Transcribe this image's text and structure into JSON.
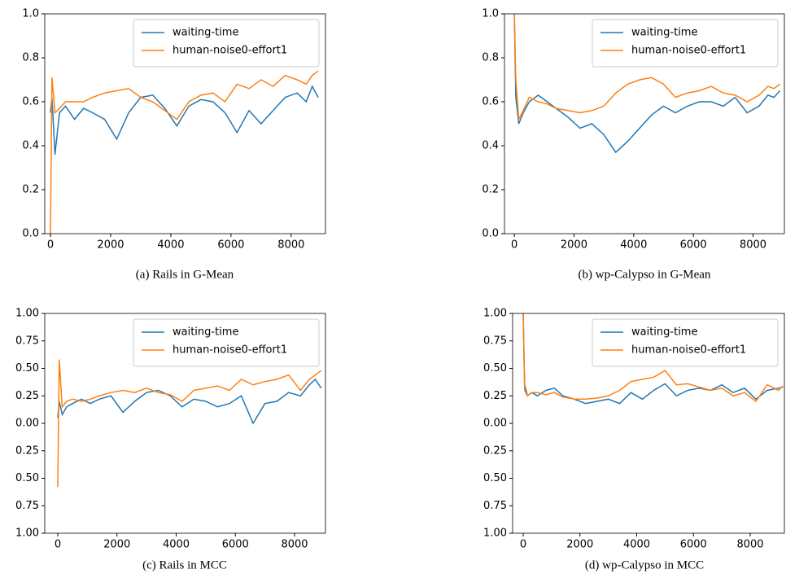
{
  "chart_data": [
    {
      "type": "line",
      "caption": "(a)  Rails in G-Mean",
      "x": [
        0,
        50,
        150,
        300,
        500,
        800,
        1100,
        1400,
        1800,
        2200,
        2600,
        3000,
        3400,
        3800,
        4200,
        4600,
        5000,
        5400,
        5800,
        6200,
        6600,
        7000,
        7400,
        7800,
        8200,
        8500,
        8700,
        8900
      ],
      "series": [
        {
          "name": "waiting-time",
          "color": "#1f77b4",
          "values": [
            0.55,
            0.62,
            0.36,
            0.55,
            0.58,
            0.52,
            0.57,
            0.55,
            0.52,
            0.43,
            0.55,
            0.62,
            0.63,
            0.57,
            0.49,
            0.58,
            0.61,
            0.6,
            0.55,
            0.46,
            0.56,
            0.5,
            0.56,
            0.62,
            0.64,
            0.6,
            0.67,
            0.62
          ]
        },
        {
          "name": "human-noise0-effort1",
          "color": "#ff7f0e",
          "values": [
            0.0,
            0.71,
            0.55,
            0.57,
            0.6,
            0.6,
            0.6,
            0.62,
            0.64,
            0.65,
            0.66,
            0.62,
            0.6,
            0.56,
            0.52,
            0.6,
            0.63,
            0.64,
            0.6,
            0.68,
            0.66,
            0.7,
            0.67,
            0.72,
            0.7,
            0.68,
            0.72,
            0.74
          ]
        }
      ],
      "xlim": [
        -190,
        9140
      ],
      "ylim": [
        0,
        1
      ],
      "xticks": [
        0,
        2000,
        4000,
        6000,
        8000
      ],
      "yticks": [
        {
          "value": 0,
          "label": "0.0"
        },
        0.2,
        0.4,
        0.6,
        0.8,
        {
          "value": 1,
          "label": "1.0"
        }
      ],
      "legend": "upper right"
    },
    {
      "type": "line",
      "caption": "(b)  wp-Calypso in G-Mean",
      "x": [
        0,
        50,
        150,
        300,
        500,
        800,
        1100,
        1400,
        1800,
        2200,
        2600,
        3000,
        3400,
        3800,
        4200,
        4600,
        5000,
        5400,
        5800,
        6200,
        6600,
        7000,
        7400,
        7800,
        8200,
        8500,
        8700,
        8900
      ],
      "series": [
        {
          "name": "waiting-time",
          "color": "#1f77b4",
          "values": [
            1.0,
            0.62,
            0.5,
            0.55,
            0.6,
            0.63,
            0.6,
            0.57,
            0.53,
            0.48,
            0.5,
            0.45,
            0.37,
            0.42,
            0.48,
            0.54,
            0.58,
            0.55,
            0.58,
            0.6,
            0.6,
            0.58,
            0.62,
            0.55,
            0.58,
            0.63,
            0.62,
            0.65
          ]
        },
        {
          "name": "human-noise0-effort1",
          "color": "#ff7f0e",
          "values": [
            1.0,
            0.7,
            0.52,
            0.56,
            0.62,
            0.6,
            0.59,
            0.57,
            0.56,
            0.55,
            0.56,
            0.58,
            0.64,
            0.68,
            0.7,
            0.71,
            0.68,
            0.62,
            0.64,
            0.65,
            0.67,
            0.64,
            0.63,
            0.6,
            0.63,
            0.67,
            0.66,
            0.68
          ]
        }
      ],
      "xlim": [
        -330,
        9050
      ],
      "ylim": [
        0,
        1
      ],
      "xticks": [
        0,
        2000,
        4000,
        6000,
        8000
      ],
      "yticks": [
        {
          "value": 0,
          "label": "0.0"
        },
        0.2,
        0.4,
        0.6,
        0.8,
        {
          "value": 1,
          "label": "1.0"
        }
      ],
      "legend": "upper right"
    },
    {
      "type": "line",
      "caption": "(c)  Rails in MCC",
      "x": [
        0,
        50,
        150,
        300,
        500,
        800,
        1100,
        1400,
        1800,
        2200,
        2600,
        3000,
        3400,
        3800,
        4200,
        4600,
        5000,
        5400,
        5800,
        6200,
        6600,
        7000,
        7400,
        7800,
        8200,
        8500,
        8700,
        8900
      ],
      "series": [
        {
          "name": "waiting-time",
          "color": "#1f77b4",
          "values": [
            0.05,
            0.2,
            0.08,
            0.15,
            0.18,
            0.22,
            0.18,
            0.22,
            0.25,
            0.1,
            0.2,
            0.28,
            0.3,
            0.25,
            0.15,
            0.22,
            0.2,
            0.15,
            0.18,
            0.25,
            0.0,
            0.18,
            0.2,
            0.28,
            0.25,
            0.35,
            0.4,
            0.32
          ]
        },
        {
          "name": "human-noise0-effort1",
          "color": "#ff7f0e",
          "values": [
            -0.58,
            0.58,
            0.15,
            0.2,
            0.22,
            0.2,
            0.22,
            0.25,
            0.28,
            0.3,
            0.28,
            0.32,
            0.28,
            0.26,
            0.2,
            0.3,
            0.32,
            0.34,
            0.3,
            0.4,
            0.35,
            0.38,
            0.4,
            0.44,
            0.3,
            0.4,
            0.44,
            0.48
          ]
        }
      ],
      "xlim": [
        -440,
        9045
      ],
      "ylim": [
        -1,
        1
      ],
      "xticks": [
        0,
        2000,
        4000,
        6000,
        8000
      ],
      "yticks": [
        {
          "value": -1,
          "label": "1.00"
        },
        {
          "value": -0.75,
          "label": "0.75"
        },
        {
          "value": -0.5,
          "label": "0.50"
        },
        {
          "value": -0.25,
          "label": "0.25"
        },
        {
          "value": 0,
          "label": "0.00"
        },
        0.25,
        {
          "value": 0.5,
          "label": "0.50"
        },
        0.75,
        {
          "value": 1,
          "label": "1.00"
        }
      ],
      "legend": "upper right"
    },
    {
      "type": "line",
      "caption": "(d)  wp-Calypso in MCC",
      "x": [
        0,
        50,
        150,
        300,
        500,
        800,
        1100,
        1400,
        1800,
        2200,
        2600,
        3000,
        3400,
        3800,
        4200,
        4600,
        5000,
        5400,
        5800,
        6200,
        6600,
        7000,
        7400,
        7800,
        8200,
        8600,
        9000,
        9150
      ],
      "series": [
        {
          "name": "waiting-time",
          "color": "#1f77b4",
          "values": [
            1.0,
            0.35,
            0.25,
            0.28,
            0.25,
            0.3,
            0.32,
            0.25,
            0.22,
            0.18,
            0.2,
            0.22,
            0.18,
            0.28,
            0.22,
            0.3,
            0.36,
            0.25,
            0.3,
            0.32,
            0.3,
            0.35,
            0.28,
            0.32,
            0.22,
            0.3,
            0.32,
            0.33
          ]
        },
        {
          "name": "human-noise0-effort1",
          "color": "#ff7f0e",
          "values": [
            1.0,
            0.3,
            0.25,
            0.28,
            0.28,
            0.26,
            0.28,
            0.24,
            0.22,
            0.22,
            0.23,
            0.25,
            0.3,
            0.38,
            0.4,
            0.42,
            0.48,
            0.35,
            0.36,
            0.33,
            0.3,
            0.32,
            0.25,
            0.28,
            0.2,
            0.35,
            0.3,
            0.34
          ]
        }
      ],
      "xlim": [
        -373,
        9204
      ],
      "ylim": [
        -1,
        1
      ],
      "xticks": [
        0,
        2000,
        4000,
        6000,
        8000
      ],
      "yticks": [
        {
          "value": -1,
          "label": "1.00"
        },
        {
          "value": -0.75,
          "label": "0.75"
        },
        {
          "value": -0.5,
          "label": "0.50"
        },
        {
          "value": -0.25,
          "label": "0.25"
        },
        {
          "value": 0,
          "label": "0.00"
        },
        0.25,
        {
          "value": 0.5,
          "label": "0.50"
        },
        0.75,
        {
          "value": 1,
          "label": "1.00"
        }
      ],
      "legend": "upper right"
    }
  ]
}
